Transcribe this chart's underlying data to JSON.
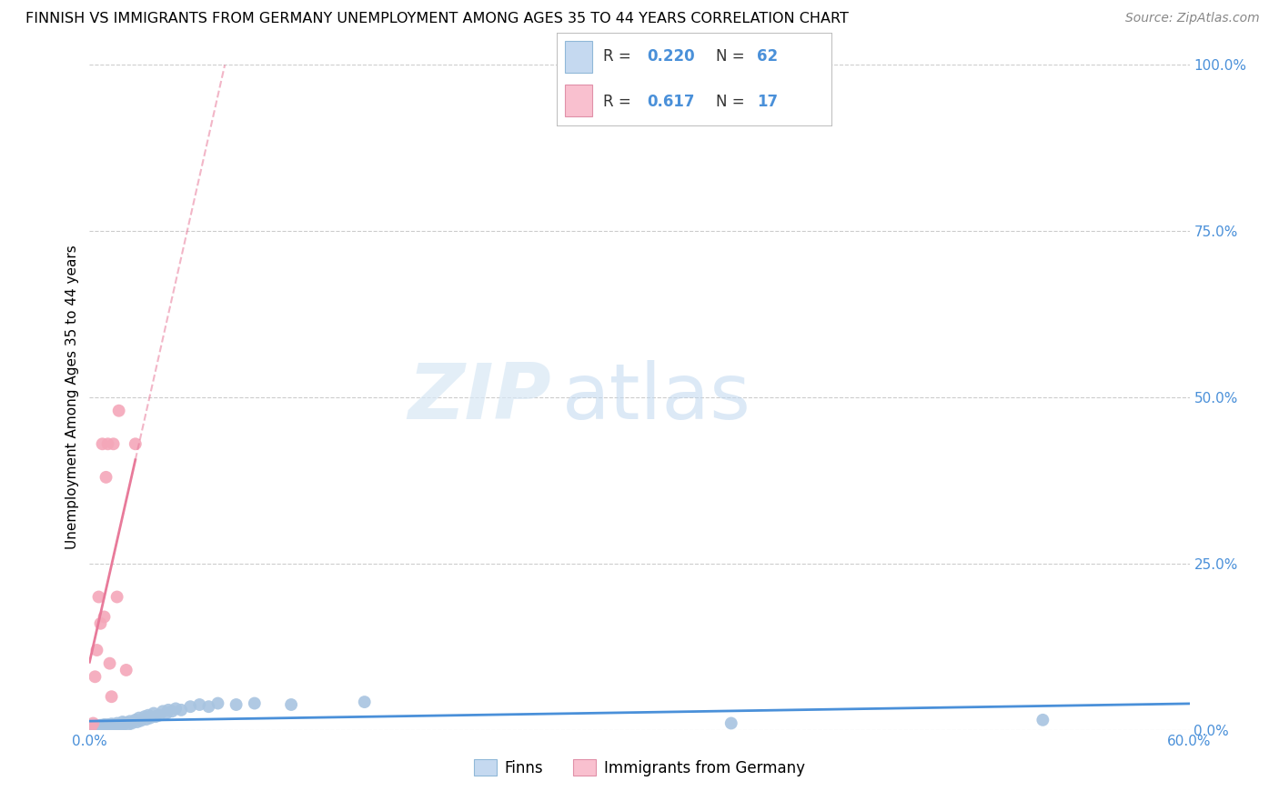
{
  "title": "FINNISH VS IMMIGRANTS FROM GERMANY UNEMPLOYMENT AMONG AGES 35 TO 44 YEARS CORRELATION CHART",
  "source": "Source: ZipAtlas.com",
  "ylabel_label": "Unemployment Among Ages 35 to 44 years",
  "legend_labels": [
    "Finns",
    "Immigrants from Germany"
  ],
  "r_finns": 0.22,
  "n_finns": 62,
  "r_immigrants": 0.617,
  "n_immigrants": 17,
  "finns_color": "#a8c4e0",
  "immigrants_color": "#f4a7b9",
  "finns_line_color": "#4a90d9",
  "immigrants_line_color": "#e87a9a",
  "legend_box_finns": "#c5d9f0",
  "legend_box_immigrants": "#f9c0cf",
  "watermark_zip": "ZIP",
  "watermark_atlas": "atlas",
  "finns_x": [
    0.001,
    0.002,
    0.002,
    0.003,
    0.003,
    0.004,
    0.004,
    0.005,
    0.005,
    0.006,
    0.006,
    0.007,
    0.007,
    0.008,
    0.008,
    0.009,
    0.009,
    0.01,
    0.01,
    0.011,
    0.012,
    0.012,
    0.013,
    0.013,
    0.014,
    0.015,
    0.015,
    0.016,
    0.017,
    0.018,
    0.019,
    0.02,
    0.021,
    0.022,
    0.023,
    0.025,
    0.026,
    0.027,
    0.028,
    0.03,
    0.031,
    0.032,
    0.033,
    0.035,
    0.036,
    0.038,
    0.04,
    0.042,
    0.043,
    0.045,
    0.047,
    0.05,
    0.055,
    0.06,
    0.065,
    0.07,
    0.08,
    0.09,
    0.11,
    0.15,
    0.35,
    0.52
  ],
  "finns_y": [
    0.003,
    0.002,
    0.004,
    0.003,
    0.005,
    0.004,
    0.006,
    0.002,
    0.005,
    0.003,
    0.007,
    0.004,
    0.006,
    0.003,
    0.008,
    0.005,
    0.007,
    0.004,
    0.008,
    0.005,
    0.006,
    0.009,
    0.005,
    0.008,
    0.007,
    0.01,
    0.006,
    0.008,
    0.007,
    0.012,
    0.009,
    0.011,
    0.008,
    0.013,
    0.01,
    0.015,
    0.012,
    0.018,
    0.014,
    0.02,
    0.016,
    0.022,
    0.018,
    0.025,
    0.02,
    0.022,
    0.028,
    0.025,
    0.03,
    0.028,
    0.032,
    0.03,
    0.035,
    0.038,
    0.035,
    0.04,
    0.038,
    0.04,
    0.038,
    0.042,
    0.01,
    0.015
  ],
  "immigrants_x": [
    0.001,
    0.002,
    0.003,
    0.004,
    0.005,
    0.006,
    0.007,
    0.008,
    0.009,
    0.01,
    0.011,
    0.012,
    0.013,
    0.015,
    0.016,
    0.02,
    0.025
  ],
  "immigrants_y": [
    0.005,
    0.01,
    0.08,
    0.12,
    0.2,
    0.16,
    0.43,
    0.17,
    0.38,
    0.43,
    0.1,
    0.05,
    0.43,
    0.2,
    0.48,
    0.09,
    0.43
  ],
  "xlim": [
    0.0,
    0.6
  ],
  "ylim": [
    0.0,
    1.0
  ],
  "grid_color": "#cccccc",
  "background_color": "#ffffff",
  "title_fontsize": 11.5,
  "source_fontsize": 10,
  "tick_fontsize": 11,
  "ylabel_fontsize": 11
}
